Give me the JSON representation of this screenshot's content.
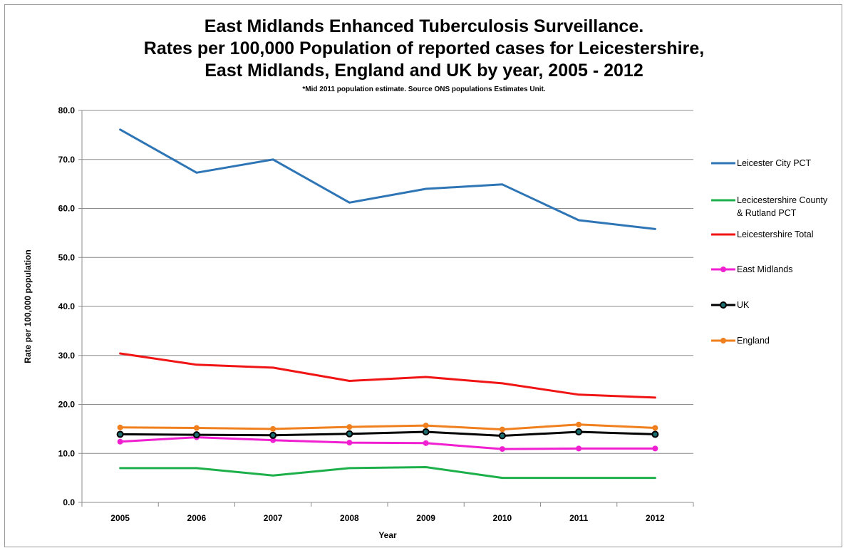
{
  "title_lines": [
    "East Midlands Enhanced Tuberculosis Surveillance.",
    "Rates per 100,000 Population of reported cases for Leicestershire,",
    "East Midlands, England and UK by year, 2005 - 2012"
  ],
  "note": "*Mid 2011 population estimate.  Source ONS populations Estimates Unit.",
  "chart_data": {
    "type": "line",
    "xlabel": "Year",
    "ylabel": "Rate per 100,000 population",
    "ylim": [
      0,
      80
    ],
    "y_ticks": [
      "0.0",
      "10.0",
      "20.0",
      "30.0",
      "40.0",
      "50.0",
      "60.0",
      "70.0",
      "80.0"
    ],
    "categories": [
      "2005",
      "2006",
      "2007",
      "2008",
      "2009",
      "2010",
      "2011",
      "2012"
    ],
    "grid": true,
    "legend_position": "right",
    "series": [
      {
        "name": "Leicester City PCT",
        "color": "#2E75B6",
        "markers": false,
        "values": [
          76.1,
          67.3,
          70.0,
          61.2,
          64.0,
          64.9,
          57.6,
          55.8
        ]
      },
      {
        "name": "Lecicestershire County & Rutland PCT",
        "legend_lines": [
          "Lecicestershire County",
          "& Rutland PCT"
        ],
        "color": "#1DB04A",
        "markers": false,
        "values": [
          7.0,
          7.0,
          5.5,
          7.0,
          7.2,
          5.0,
          5.0,
          5.0
        ]
      },
      {
        "name": "Leicestershire Total",
        "color": "#F01414",
        "markers": false,
        "values": [
          30.4,
          28.1,
          27.5,
          24.8,
          25.6,
          24.3,
          22.0,
          21.4
        ]
      },
      {
        "name": "East Midlands",
        "color": "#F020D0",
        "markers": true,
        "values": [
          12.4,
          13.3,
          12.7,
          12.2,
          12.1,
          10.9,
          11.0,
          11.0
        ]
      },
      {
        "name": "UK",
        "color": "#000000",
        "markers": true,
        "marker_fill": "#1a6e70",
        "values": [
          13.9,
          13.8,
          13.7,
          14.0,
          14.4,
          13.6,
          14.4,
          13.9
        ]
      },
      {
        "name": "England",
        "color": "#F07F1E",
        "markers": true,
        "values": [
          15.3,
          15.2,
          15.0,
          15.4,
          15.7,
          14.9,
          15.9,
          15.2
        ]
      }
    ]
  }
}
